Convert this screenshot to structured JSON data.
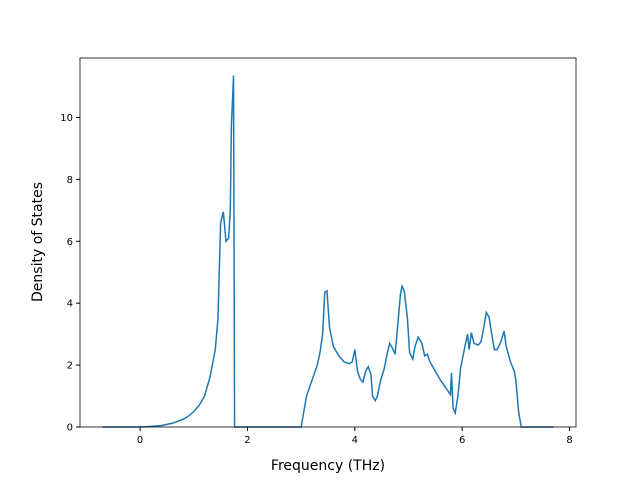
{
  "chart_data": {
    "type": "line",
    "xlabel": "Frequency (THz)",
    "ylabel": "Density of States",
    "xlim": [
      -1.12,
      8.12
    ],
    "ylim": [
      0,
      11.92
    ],
    "xticks": [
      0,
      2,
      4,
      6,
      8
    ],
    "yticks": [
      0,
      2,
      4,
      6,
      8,
      10
    ],
    "x": [
      -0.7,
      0,
      0.2,
      0.4,
      0.6,
      0.8,
      0.9,
      1.0,
      1.1,
      1.2,
      1.3,
      1.4,
      1.45,
      1.5,
      1.55,
      1.6,
      1.65,
      1.68,
      1.7,
      1.74,
      1.76,
      3.0,
      3.1,
      3.2,
      3.3,
      3.35,
      3.4,
      3.44,
      3.48,
      3.53,
      3.6,
      3.7,
      3.8,
      3.9,
      3.95,
      4.0,
      4.05,
      4.1,
      4.15,
      4.2,
      4.25,
      4.3,
      4.33,
      4.38,
      4.42,
      4.48,
      4.55,
      4.6,
      4.65,
      4.7,
      4.75,
      4.8,
      4.85,
      4.88,
      4.92,
      4.98,
      5.02,
      5.08,
      5.12,
      5.18,
      5.25,
      5.3,
      5.35,
      5.4,
      5.5,
      5.6,
      5.7,
      5.78,
      5.8,
      5.83,
      5.87,
      5.92,
      5.97,
      6.05,
      6.1,
      6.13,
      6.17,
      6.22,
      6.3,
      6.35,
      6.4,
      6.45,
      6.5,
      6.55,
      6.6,
      6.65,
      6.72,
      6.78,
      6.82,
      6.9,
      6.97,
      7.0,
      7.05,
      7.1,
      7.7
    ],
    "series": [
      {
        "color": "#1f77b4",
        "values": [
          0,
          0,
          0.02,
          0.05,
          0.12,
          0.25,
          0.35,
          0.5,
          0.7,
          1.0,
          1.6,
          2.5,
          3.5,
          6.6,
          6.95,
          6.0,
          6.1,
          7.0,
          9.7,
          11.35,
          0,
          0,
          1.0,
          1.5,
          2.0,
          2.4,
          3.0,
          4.35,
          4.4,
          3.2,
          2.6,
          2.3,
          2.1,
          2.05,
          2.1,
          2.5,
          1.8,
          1.55,
          1.45,
          1.8,
          1.95,
          1.7,
          1.0,
          0.85,
          1.0,
          1.5,
          1.9,
          2.35,
          2.7,
          2.55,
          2.35,
          3.3,
          4.3,
          4.55,
          4.4,
          3.5,
          2.4,
          2.2,
          2.6,
          2.9,
          2.7,
          2.3,
          2.35,
          2.1,
          1.8,
          1.5,
          1.25,
          1.05,
          1.75,
          0.6,
          0.45,
          1.0,
          1.9,
          2.6,
          3.0,
          2.5,
          3.05,
          2.7,
          2.65,
          2.75,
          3.2,
          3.7,
          3.55,
          3.0,
          2.5,
          2.5,
          2.75,
          3.1,
          2.6,
          2.1,
          1.8,
          1.5,
          0.5,
          0,
          0
        ]
      }
    ]
  }
}
